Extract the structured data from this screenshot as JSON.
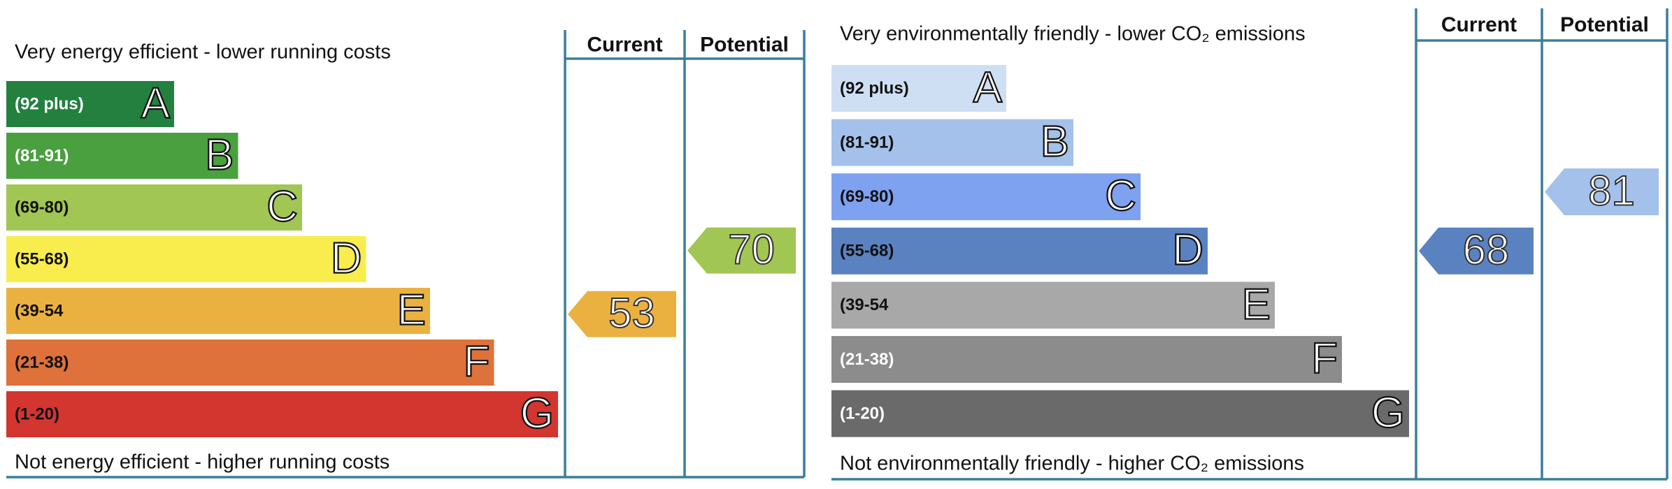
{
  "panels": [
    {
      "title_top": "Very energy efficient - lower running costs",
      "title_bottom": "Not energy efficient - higher running costs",
      "headers": [
        "Current",
        "Potential"
      ],
      "bands": [
        {
          "range": "(92 plus)",
          "letter": "A",
          "color": "#23803f",
          "text_color": "#ffffff"
        },
        {
          "range": "(81-91)",
          "letter": "B",
          "color": "#4a9f3f",
          "text_color": "#ffffff"
        },
        {
          "range": "(69-80)",
          "letter": "C",
          "color": "#a2c653",
          "text_color": "#111111"
        },
        {
          "range": "(55-68)",
          "letter": "D",
          "color": "#f8ed4c",
          "text_color": "#111111"
        },
        {
          "range": "(39-54",
          "letter": "E",
          "color": "#ebb140",
          "text_color": "#111111"
        },
        {
          "range": "(21-38)",
          "letter": "F",
          "color": "#df713a",
          "text_color": "#111111"
        },
        {
          "range": "(1-20)",
          "letter": "G",
          "color": "#d3352f",
          "text_color": "#111111"
        }
      ],
      "current": {
        "value": 53,
        "color": "#ebb140"
      },
      "potential": {
        "value": 70,
        "color": "#a2c653"
      }
    },
    {
      "title_top": "Very environmentally friendly - lower CO₂ emissions",
      "title_bottom": "Not environmentally friendly - higher CO₂ emissions",
      "headers": [
        "Current",
        "Potential"
      ],
      "bands": [
        {
          "range": "(92 plus)",
          "letter": "A",
          "color": "#cfdff3",
          "text_color": "#111111"
        },
        {
          "range": "(81-91)",
          "letter": "B",
          "color": "#a3c1ea",
          "text_color": "#111111"
        },
        {
          "range": "(69-80)",
          "letter": "C",
          "color": "#7ea1f0",
          "text_color": "#111111"
        },
        {
          "range": "(55-68)",
          "letter": "D",
          "color": "#5b82c0",
          "text_color": "#111111"
        },
        {
          "range": "(39-54",
          "letter": "E",
          "color": "#a8a8a8",
          "text_color": "#111111"
        },
        {
          "range": "(21-38)",
          "letter": "F",
          "color": "#8c8c8c",
          "text_color": "#ffffff"
        },
        {
          "range": "(1-20)",
          "letter": "G",
          "color": "#6a6a6a",
          "text_color": "#ffffff"
        }
      ],
      "current": {
        "value": 68,
        "color": "#5b82c0"
      },
      "potential": {
        "value": 81,
        "color": "#a3c1ea"
      }
    }
  ]
}
